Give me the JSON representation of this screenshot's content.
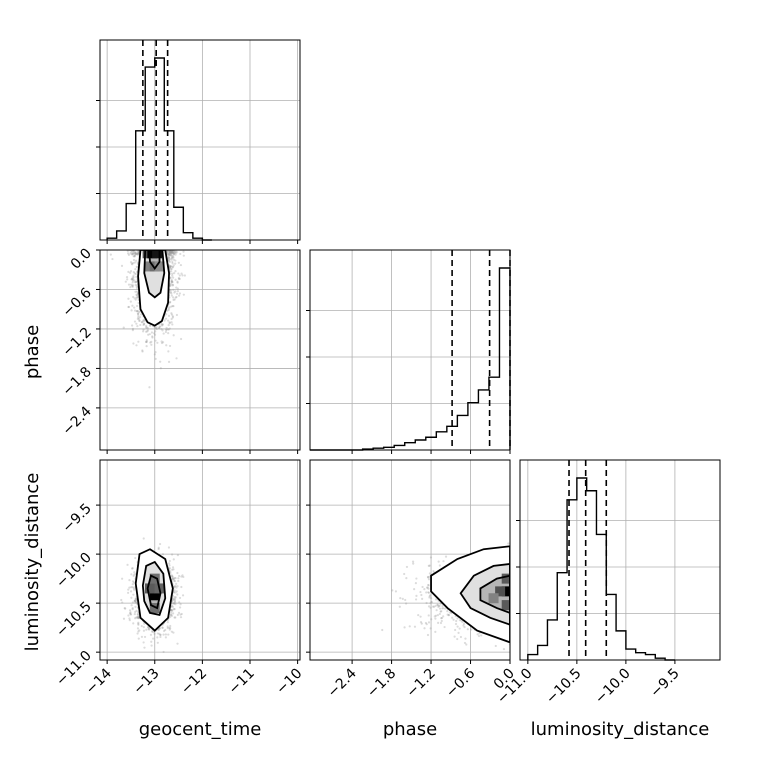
{
  "colors": {
    "frame": "#000000",
    "grid": "#b0b0b0",
    "hist": "#000000",
    "quantile_line": "#000000",
    "scatter": "#9a9a9a",
    "density_scale": [
      "#ffffff",
      "#e0e0e0",
      "#b5b5b5",
      "#7a7a7a",
      "#000000"
    ]
  },
  "chart_data": {
    "type": "corner",
    "parameters": [
      "geocent_time",
      "phase",
      "luminosity_distance"
    ],
    "axis_labels": {
      "geocent_time": "geocent_time",
      "phase": "phase",
      "luminosity_distance": "luminosity_distance"
    },
    "ranges": {
      "geocent_time": [
        -14.15,
        -9.95
      ],
      "phase": [
        -3.04,
        0.0
      ],
      "luminosity_distance": [
        -11.08,
        -9.04
      ]
    },
    "ticks": {
      "geocent_time": {
        "values": [
          -14,
          -13,
          -12,
          -11,
          -10
        ],
        "labels": [
          "−14",
          "−13",
          "−12",
          "−11",
          "−10"
        ]
      },
      "phase": {
        "values": [
          -2.4,
          -1.8,
          -1.2,
          -0.6,
          0.0
        ],
        "labels": [
          "−2.4",
          "−1.8",
          "−1.2",
          "−0.6",
          "0.0"
        ]
      },
      "luminosity_distance": {
        "values": [
          -11.0,
          -10.5,
          -10.0,
          -9.5
        ],
        "labels": [
          "−11.0",
          "−10.5",
          "−10.0",
          "−9.5"
        ]
      }
    },
    "grid": true,
    "histograms": {
      "geocent_time": {
        "bin_edges": [
          -14.0,
          -13.8,
          -13.6,
          -13.4,
          -13.2,
          -13.0,
          -12.8,
          -12.6,
          -12.4,
          -12.2,
          -12.0,
          -11.8
        ],
        "counts": [
          0.01,
          0.05,
          0.2,
          0.6,
          0.95,
          1.0,
          0.6,
          0.18,
          0.04,
          0.01,
          0.0
        ],
        "quantiles": [
          -13.25,
          -12.97,
          -12.73
        ]
      },
      "phase": {
        "bin_edges": [
          -3.04,
          -2.88,
          -2.72,
          -2.56,
          -2.4,
          -2.24,
          -2.08,
          -1.92,
          -1.76,
          -1.6,
          -1.44,
          -1.28,
          -1.12,
          -0.96,
          -0.8,
          -0.64,
          -0.48,
          -0.32,
          -0.16,
          0.0
        ],
        "counts": [
          0.0,
          0.0,
          0.0,
          0.0,
          0.0,
          0.005,
          0.01,
          0.015,
          0.025,
          0.04,
          0.055,
          0.07,
          0.1,
          0.13,
          0.19,
          0.26,
          0.33,
          0.4,
          1.0
        ],
        "quantiles": [
          -0.88,
          -0.31,
          0.0
        ]
      },
      "luminosity_distance": {
        "bin_edges": [
          -11.0,
          -10.9,
          -10.8,
          -10.7,
          -10.6,
          -10.5,
          -10.4,
          -10.3,
          -10.2,
          -10.1,
          -10.0,
          -9.9,
          -9.8,
          -9.7,
          -9.6,
          -9.5
        ],
        "counts": [
          0.03,
          0.08,
          0.22,
          0.48,
          0.88,
          1.0,
          0.93,
          0.69,
          0.36,
          0.16,
          0.06,
          0.04,
          0.03,
          0.01,
          0.0
        ],
        "quantiles": [
          -10.58,
          -10.41,
          -10.2
        ]
      }
    },
    "pairs": [
      {
        "x": "geocent_time",
        "y": "phase",
        "mean": [
          -13.0,
          -0.35
        ],
        "std": [
          0.22,
          0.45
        ],
        "clip_y_max": 0.0,
        "n_points": 1900,
        "contours": [
          [
            [
              -13.3,
              0.0
            ],
            [
              -13.35,
              -0.4
            ],
            [
              -13.3,
              -0.9
            ],
            [
              -13.15,
              -1.1
            ],
            [
              -13.0,
              -1.15
            ],
            [
              -12.85,
              -1.08
            ],
            [
              -12.72,
              -0.8
            ],
            [
              -12.7,
              -0.35
            ],
            [
              -12.78,
              0.0
            ]
          ],
          [
            [
              -13.2,
              0.0
            ],
            [
              -13.22,
              -0.35
            ],
            [
              -13.12,
              -0.65
            ],
            [
              -13.0,
              -0.72
            ],
            [
              -12.88,
              -0.65
            ],
            [
              -12.8,
              -0.35
            ],
            [
              -12.84,
              0.0
            ]
          ],
          [
            [
              -13.12,
              0.0
            ],
            [
              -13.1,
              -0.18
            ],
            [
              -13.0,
              -0.28
            ],
            [
              -12.9,
              -0.18
            ],
            [
              -12.9,
              0.0
            ]
          ]
        ],
        "density_core": [
          [
            -13.15,
            -0.05,
            0.6
          ],
          [
            -13.05,
            -0.05,
            1.0
          ],
          [
            -12.95,
            -0.05,
            0.9
          ],
          [
            -13.1,
            -0.25,
            0.35
          ],
          [
            -13.0,
            -0.25,
            0.45
          ],
          [
            -12.9,
            -0.25,
            0.3
          ]
        ]
      },
      {
        "x": "geocent_time",
        "y": "luminosity_distance",
        "mean": [
          -13.0,
          -10.42
        ],
        "std": [
          0.2,
          0.16
        ],
        "clip_y_max": null,
        "n_points": 1900,
        "contours": [
          [
            [
              -13.4,
              -10.3
            ],
            [
              -13.32,
              -10.0
            ],
            [
              -13.1,
              -9.95
            ],
            [
              -12.78,
              -10.05
            ],
            [
              -12.62,
              -10.35
            ],
            [
              -12.72,
              -10.65
            ],
            [
              -13.0,
              -10.78
            ],
            [
              -13.3,
              -10.65
            ]
          ],
          [
            [
              -13.25,
              -10.32
            ],
            [
              -13.18,
              -10.12
            ],
            [
              -13.0,
              -10.08
            ],
            [
              -12.82,
              -10.2
            ],
            [
              -12.78,
              -10.45
            ],
            [
              -12.9,
              -10.62
            ],
            [
              -13.1,
              -10.6
            ],
            [
              -13.22,
              -10.48
            ]
          ],
          [
            [
              -13.15,
              -10.35
            ],
            [
              -13.08,
              -10.22
            ],
            [
              -12.95,
              -10.25
            ],
            [
              -12.88,
              -10.4
            ],
            [
              -12.95,
              -10.55
            ],
            [
              -13.08,
              -10.52
            ]
          ]
        ],
        "density_core": [
          [
            -13.0,
            -10.42,
            1.0
          ],
          [
            -13.1,
            -10.35,
            0.55
          ],
          [
            -12.9,
            -10.35,
            0.5
          ],
          [
            -13.0,
            -10.25,
            0.45
          ],
          [
            -13.0,
            -10.55,
            0.45
          ]
        ]
      },
      {
        "x": "phase",
        "y": "luminosity_distance",
        "mean": [
          -0.35,
          -10.42
        ],
        "std": [
          0.45,
          0.16
        ],
        "clip_x_max": 0.0,
        "n_points": 1900,
        "contours": [
          [
            [
              -1.2,
              -10.22
            ],
            [
              -0.8,
              -10.05
            ],
            [
              -0.4,
              -9.95
            ],
            [
              0.0,
              -9.92
            ],
            [
              0.0,
              -10.9
            ],
            [
              -0.5,
              -10.78
            ],
            [
              -0.95,
              -10.55
            ],
            [
              -1.2,
              -10.38
            ]
          ],
          [
            [
              -0.75,
              -10.4
            ],
            [
              -0.55,
              -10.22
            ],
            [
              -0.25,
              -10.12
            ],
            [
              0.0,
              -10.1
            ],
            [
              0.0,
              -10.72
            ],
            [
              -0.3,
              -10.65
            ],
            [
              -0.6,
              -10.55
            ]
          ],
          [
            [
              -0.45,
              -10.35
            ],
            [
              -0.2,
              -10.25
            ],
            [
              0.0,
              -10.22
            ],
            [
              0.0,
              -10.6
            ],
            [
              -0.2,
              -10.55
            ],
            [
              -0.45,
              -10.47
            ]
          ]
        ],
        "density_core": [
          [
            -0.05,
            -10.38,
            1.0
          ],
          [
            -0.15,
            -10.38,
            0.6
          ],
          [
            -0.05,
            -10.25,
            0.55
          ],
          [
            -0.05,
            -10.52,
            0.55
          ],
          [
            -0.25,
            -10.45,
            0.35
          ]
        ]
      }
    ]
  }
}
